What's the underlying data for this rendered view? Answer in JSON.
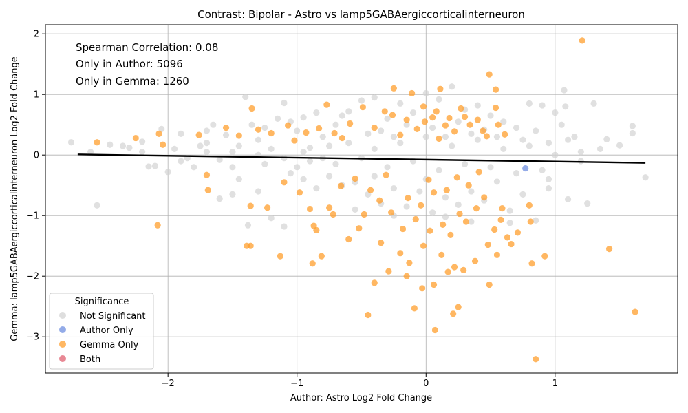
{
  "chart_data": {
    "type": "scatter",
    "title": "Contrast: Bipolar - Astro vs lamp5GABAergiccorticalinterneuron",
    "xlabel": "Author: Astro Log2 Fold Change",
    "ylabel": "Gemma: lamp5GABAergiccorticalinterneuron Log2 Fold Change",
    "xlim": [
      -2.95,
      1.95
    ],
    "ylim": [
      -3.6,
      2.15
    ],
    "x_ticks": [
      -2,
      -1,
      0,
      1
    ],
    "x_tick_labels": [
      "−2",
      "−1",
      "0",
      "1"
    ],
    "y_ticks": [
      2,
      1,
      0,
      -1,
      -2,
      -3
    ],
    "y_tick_labels": [
      "2",
      "1",
      "0",
      "−1",
      "−2",
      "−3"
    ],
    "grid": true,
    "annotations": [
      "Spearman Correlation: 0.08",
      "Only in Author: 5096",
      "Only in Gemma: 1260"
    ],
    "legend": {
      "title": "Significance",
      "placement": "lower-left",
      "entries": [
        {
          "label": "Not Significant",
          "color": "#d3d3d3"
        },
        {
          "label": "Author Only",
          "color": "#6f8fe0"
        },
        {
          "label": "Gemma Only",
          "color": "#ff9f2e"
        },
        {
          "label": "Both",
          "color": "#e06070"
        }
      ]
    },
    "regression_line": {
      "x": [
        -2.7,
        1.7
      ],
      "y": [
        0.01,
        -0.13
      ],
      "color": "#000000"
    },
    "series": [
      {
        "name": "Author Only",
        "color": "#6f8fe0",
        "points": [
          [
            0.77,
            -0.22
          ]
        ]
      },
      {
        "name": "Gemma Only",
        "color": "#ff9f2e",
        "points": [
          [
            1.21,
            1.89
          ],
          [
            0.49,
            1.33
          ],
          [
            0.54,
            1.08
          ],
          [
            0.11,
            1.09
          ],
          [
            -0.25,
            1.1
          ],
          [
            -0.11,
            1.02
          ],
          [
            -1.35,
            0.77
          ],
          [
            -0.77,
            0.83
          ],
          [
            -0.49,
            0.79
          ],
          [
            0.54,
            0.78
          ],
          [
            -0.32,
            0.72
          ],
          [
            0.27,
            0.77
          ],
          [
            -2.55,
            0.21
          ],
          [
            -2.07,
            0.35
          ],
          [
            -2.04,
            0.17
          ],
          [
            -2.25,
            0.28
          ],
          [
            -1.76,
            0.33
          ],
          [
            -1.55,
            0.45
          ],
          [
            -1.3,
            0.42
          ],
          [
            -1.07,
            0.49
          ],
          [
            -0.93,
            0.37
          ],
          [
            -0.65,
            0.28
          ],
          [
            0.47,
            0.31
          ],
          [
            0.61,
            0.34
          ],
          [
            -1.7,
            -0.33
          ],
          [
            -1.69,
            -0.58
          ],
          [
            -2.08,
            -1.16
          ],
          [
            -1.36,
            -0.84
          ],
          [
            -1.23,
            -0.87
          ],
          [
            -1.1,
            -0.45
          ],
          [
            -0.98,
            -0.62
          ],
          [
            -0.9,
            -0.89
          ],
          [
            -0.87,
            -1.17
          ],
          [
            -0.85,
            -1.24
          ],
          [
            -0.75,
            -0.87
          ],
          [
            -0.72,
            -0.98
          ],
          [
            -1.39,
            -1.5
          ],
          [
            -1.36,
            -1.5
          ],
          [
            -1.13,
            -1.67
          ],
          [
            -0.88,
            -1.79
          ],
          [
            -0.81,
            -1.67
          ],
          [
            -0.6,
            -1.39
          ],
          [
            -0.45,
            -2.64
          ],
          [
            -0.4,
            -2.11
          ],
          [
            -0.29,
            -1.92
          ],
          [
            -0.15,
            -2.0
          ],
          [
            -0.09,
            -2.53
          ],
          [
            -0.03,
            -2.2
          ],
          [
            0.07,
            -2.89
          ],
          [
            0.06,
            -2.14
          ],
          [
            0.21,
            -2.62
          ],
          [
            0.25,
            -2.51
          ],
          [
            0.49,
            -2.14
          ],
          [
            0.85,
            -3.37
          ],
          [
            1.62,
            -2.59
          ],
          [
            1.42,
            -1.55
          ],
          [
            0.92,
            -1.67
          ],
          [
            0.82,
            -1.79
          ],
          [
            0.81,
            -1.1
          ],
          [
            0.66,
            -1.47
          ],
          [
            0.55,
            -1.65
          ],
          [
            0.48,
            -1.48
          ],
          [
            0.38,
            -1.75
          ],
          [
            0.29,
            -1.9
          ],
          [
            0.22,
            -1.85
          ],
          [
            0.17,
            -1.93
          ],
          [
            0.12,
            -1.65
          ],
          [
            -0.02,
            -1.5
          ],
          [
            -0.13,
            -1.78
          ],
          [
            -0.2,
            -1.62
          ],
          [
            -0.35,
            -1.45
          ],
          [
            -0.52,
            -1.21
          ],
          [
            -0.48,
            -0.98
          ],
          [
            -0.36,
            -0.75
          ],
          [
            -0.27,
            -0.95
          ],
          [
            -0.18,
            -1.22
          ],
          [
            -0.08,
            -1.06
          ],
          [
            0.03,
            -1.25
          ],
          [
            0.13,
            -1.15
          ],
          [
            0.19,
            -1.32
          ],
          [
            0.26,
            -0.97
          ],
          [
            0.31,
            -1.1
          ],
          [
            0.39,
            -0.88
          ],
          [
            0.45,
            -0.7
          ],
          [
            0.53,
            -1.23
          ],
          [
            0.59,
            -0.88
          ],
          [
            0.63,
            -1.36
          ],
          [
            0.71,
            -1.28
          ],
          [
            0.8,
            -0.83
          ],
          [
            0.58,
            -1.07
          ],
          [
            0.06,
            -0.62
          ],
          [
            -0.04,
            -0.83
          ],
          [
            -0.14,
            -0.71
          ],
          [
            0.16,
            -0.58
          ],
          [
            0.33,
            -0.5
          ],
          [
            -0.43,
            -0.58
          ],
          [
            -0.55,
            -0.39
          ],
          [
            -0.31,
            -0.33
          ],
          [
            0.02,
            -0.41
          ],
          [
            0.24,
            -0.37
          ],
          [
            0.41,
            -0.28
          ],
          [
            -0.66,
            -0.51
          ],
          [
            0.05,
            0.62
          ],
          [
            0.15,
            0.49
          ],
          [
            -0.07,
            0.43
          ],
          [
            0.22,
            0.39
          ],
          [
            -0.2,
            0.33
          ],
          [
            0.1,
            0.27
          ],
          [
            -0.01,
            0.55
          ],
          [
            0.18,
            0.61
          ],
          [
            -0.15,
            0.58
          ],
          [
            0.34,
            0.5
          ],
          [
            0.44,
            0.4
          ],
          [
            -0.4,
            0.45
          ],
          [
            -0.59,
            0.52
          ],
          [
            -0.83,
            0.44
          ],
          [
            -1.45,
            0.32
          ],
          [
            -1.2,
            0.36
          ],
          [
            -1.02,
            0.24
          ],
          [
            -0.71,
            0.36
          ],
          [
            0.3,
            0.63
          ],
          [
            0.08,
            0.72
          ],
          [
            -0.02,
            0.8
          ],
          [
            -0.26,
            0.66
          ],
          [
            0.4,
            0.58
          ],
          [
            0.56,
            0.5
          ]
        ]
      },
      {
        "name": "Not Significant",
        "color": "#d3d3d3",
        "points": [
          [
            -2.75,
            0.21
          ],
          [
            -2.55,
            -0.83
          ],
          [
            -2.45,
            0.17
          ],
          [
            -2.3,
            0.12
          ],
          [
            -2.2,
            0.05
          ],
          [
            -2.15,
            -0.19
          ],
          [
            -2.05,
            0.43
          ],
          [
            -1.95,
            0.1
          ],
          [
            -1.85,
            -0.05
          ],
          [
            -1.7,
            0.2
          ],
          [
            -1.6,
            -0.08
          ],
          [
            -1.55,
            0.33
          ],
          [
            -1.45,
            0.15
          ],
          [
            -1.35,
            0.5
          ],
          [
            -1.4,
            0.96
          ],
          [
            -1.25,
            -0.15
          ],
          [
            -1.15,
            0.6
          ],
          [
            -1.1,
            0.86
          ],
          [
            -1.0,
            -0.2
          ],
          [
            -0.95,
            0.62
          ],
          [
            -0.9,
            0.12
          ],
          [
            -0.8,
            -0.05
          ],
          [
            -0.7,
            0.5
          ],
          [
            -0.6,
            0.72
          ],
          [
            -0.5,
            0.9
          ],
          [
            -0.4,
            0.95
          ],
          [
            -0.3,
            0.6
          ],
          [
            -0.2,
            0.85
          ],
          [
            -0.1,
            0.7
          ],
          [
            0.0,
            1.02
          ],
          [
            0.1,
            0.92
          ],
          [
            0.2,
            1.13
          ],
          [
            0.3,
            0.75
          ],
          [
            0.4,
            0.82
          ],
          [
            0.5,
            0.65
          ],
          [
            0.6,
            0.55
          ],
          [
            0.7,
            0.45
          ],
          [
            0.8,
            0.85
          ],
          [
            0.9,
            0.82
          ],
          [
            1.0,
            0.7
          ],
          [
            1.07,
            1.07
          ],
          [
            1.1,
            0.25
          ],
          [
            1.2,
            0.05
          ],
          [
            1.3,
            0.85
          ],
          [
            1.4,
            0.26
          ],
          [
            1.5,
            0.16
          ],
          [
            1.6,
            0.48
          ],
          [
            1.7,
            -0.37
          ],
          [
            1.25,
            -0.8
          ],
          [
            1.1,
            -0.73
          ],
          [
            0.95,
            -0.55
          ],
          [
            0.85,
            -1.08
          ],
          [
            0.75,
            -0.65
          ],
          [
            0.65,
            -0.92
          ],
          [
            0.55,
            -0.44
          ],
          [
            0.45,
            -0.75
          ],
          [
            0.35,
            -0.6
          ],
          [
            0.25,
            -0.82
          ],
          [
            0.15,
            -0.7
          ],
          [
            0.05,
            -0.95
          ],
          [
            -0.05,
            -0.6
          ],
          [
            -0.15,
            -0.85
          ],
          [
            -0.25,
            -0.55
          ],
          [
            -0.35,
            -0.8
          ],
          [
            -0.45,
            -0.65
          ],
          [
            -0.55,
            -0.45
          ],
          [
            -0.65,
            -0.5
          ],
          [
            -0.75,
            -0.35
          ],
          [
            -0.85,
            -0.55
          ],
          [
            -0.95,
            -0.4
          ],
          [
            -1.05,
            -0.3
          ],
          [
            -1.1,
            -1.18
          ],
          [
            -1.2,
            -1.04
          ],
          [
            -1.3,
            -0.6
          ],
          [
            -1.38,
            -1.16
          ],
          [
            -1.5,
            -0.65
          ],
          [
            -1.6,
            -0.72
          ],
          [
            -1.8,
            -0.2
          ],
          [
            -2.0,
            -0.28
          ],
          [
            -2.1,
            -0.18
          ],
          [
            -1.9,
            0.35
          ],
          [
            -1.75,
            0.15
          ],
          [
            -1.65,
            0.5
          ],
          [
            -1.5,
            0.05
          ],
          [
            -1.3,
            0.25
          ],
          [
            -1.2,
            0.1
          ],
          [
            -1.0,
            0.4
          ],
          [
            -0.8,
            0.3
          ],
          [
            -0.6,
            0.2
          ],
          [
            -0.4,
            0.1
          ],
          [
            -0.2,
            0.2
          ],
          [
            0.0,
            0.3
          ],
          [
            0.2,
            0.15
          ],
          [
            0.4,
            0.25
          ],
          [
            0.6,
            0.1
          ],
          [
            0.8,
            0.15
          ],
          [
            1.0,
            0.0
          ],
          [
            1.2,
            -0.1
          ],
          [
            0.9,
            -0.25
          ],
          [
            0.7,
            -0.3
          ],
          [
            0.5,
            -0.2
          ],
          [
            0.3,
            -0.15
          ],
          [
            0.1,
            -0.25
          ],
          [
            -0.1,
            -0.1
          ],
          [
            -0.3,
            -0.2
          ],
          [
            -0.5,
            -0.05
          ],
          [
            -0.7,
            -0.15
          ],
          [
            -0.9,
            -0.1
          ],
          [
            -1.1,
            -0.05
          ],
          [
            -1.3,
            0.0
          ],
          [
            -1.5,
            -0.2
          ],
          [
            -1.7,
            0.05
          ],
          [
            -1.9,
            -0.1
          ],
          [
            -2.2,
            0.22
          ],
          [
            -0.65,
            0.65
          ],
          [
            -0.35,
            0.4
          ],
          [
            -0.15,
            0.5
          ],
          [
            0.05,
            0.45
          ],
          [
            0.25,
            0.55
          ],
          [
            0.45,
            0.42
          ],
          [
            -0.55,
            -0.9
          ],
          [
            -0.25,
            -1.0
          ],
          [
            0.15,
            -1.02
          ],
          [
            0.35,
            -1.1
          ],
          [
            0.65,
            -1.12
          ],
          [
            0.95,
            -0.4
          ],
          [
            1.05,
            0.5
          ],
          [
            1.15,
            0.3
          ],
          [
            0.85,
            0.4
          ],
          [
            -0.85,
            0.7
          ],
          [
            -1.05,
            0.55
          ],
          [
            -1.25,
            0.45
          ],
          [
            -1.45,
            -0.4
          ],
          [
            -1.7,
            0.4
          ],
          [
            -2.35,
            0.15
          ],
          [
            -2.6,
            0.05
          ],
          [
            1.35,
            0.1
          ],
          [
            1.6,
            0.36
          ],
          [
            -0.45,
            0.35
          ],
          [
            -0.25,
            0.3
          ],
          [
            0.35,
            0.35
          ],
          [
            0.55,
            0.3
          ],
          [
            0.75,
            0.25
          ],
          [
            0.15,
            0.3
          ],
          [
            -0.75,
            0.15
          ],
          [
            -0.95,
            0.05
          ],
          [
            0.95,
            0.2
          ],
          [
            1.08,
            0.8
          ],
          [
            0.0,
            -0.4
          ],
          [
            -0.4,
            -0.35
          ]
        ]
      }
    ]
  }
}
